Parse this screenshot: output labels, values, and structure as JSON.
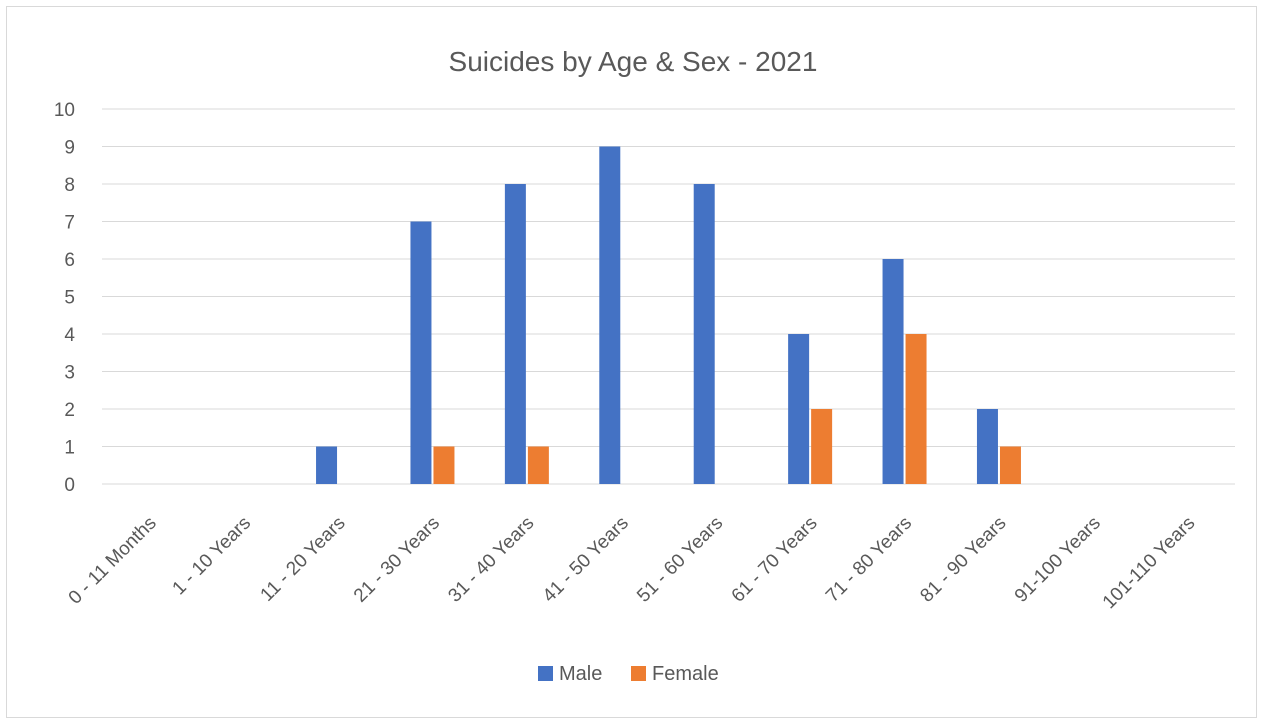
{
  "chart_data": {
    "type": "bar",
    "title": "Suicides by Age & Sex - 2021",
    "xlabel": "",
    "ylabel": "",
    "ylim": [
      0,
      10
    ],
    "yticks": [
      0,
      1,
      2,
      3,
      4,
      5,
      6,
      7,
      8,
      9,
      10
    ],
    "grid": true,
    "legend_position": "bottom",
    "categories": [
      "0 - 11 Months",
      "1 - 10 Years",
      "11 - 20 Years",
      "21 - 30 Years",
      "31 - 40 Years",
      "41 - 50 Years",
      "51 - 60 Years",
      "61 - 70 Years",
      "71 - 80 Years",
      "81 - 90 Years",
      "91-100 Years",
      "101-110 Years"
    ],
    "series": [
      {
        "name": "Male",
        "color": "#4472c4",
        "values": [
          0,
          0,
          1,
          7,
          8,
          9,
          8,
          4,
          6,
          2,
          0,
          0
        ]
      },
      {
        "name": "Female",
        "color": "#ed7d31",
        "values": [
          0,
          0,
          0,
          1,
          1,
          0,
          0,
          2,
          4,
          1,
          0,
          0
        ]
      }
    ]
  }
}
